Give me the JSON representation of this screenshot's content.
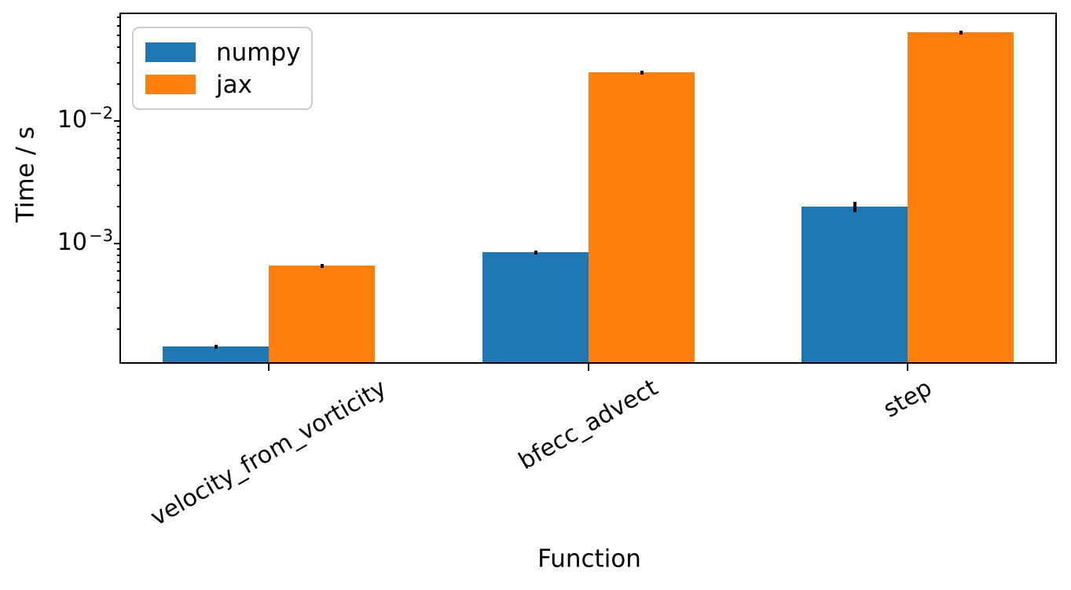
{
  "chart_data": {
    "type": "bar",
    "title": "",
    "xlabel": "Function",
    "ylabel": "Time / s",
    "yscale": "log",
    "grid": false,
    "legend_position": "upper left",
    "categories": [
      "velocity_from_vorticity",
      "bfecc_advect",
      "step"
    ],
    "series": [
      {
        "name": "numpy",
        "color": "#1f77b4",
        "values": [
          0.000145,
          0.00085,
          0.002
        ],
        "errors": [
          5e-06,
          2e-05,
          0.0002
        ]
      },
      {
        "name": "jax",
        "color": "#ff7f0e",
        "values": [
          0.00066,
          0.025,
          0.053
        ],
        "errors": [
          2e-05,
          0.0005,
          0.002
        ]
      }
    ],
    "ylim": [
      0.000108,
      0.0745
    ],
    "ytick_exponents": [
      -3,
      -2
    ],
    "error_bar_color": "#000000",
    "xtick_rotation_deg": 30
  }
}
